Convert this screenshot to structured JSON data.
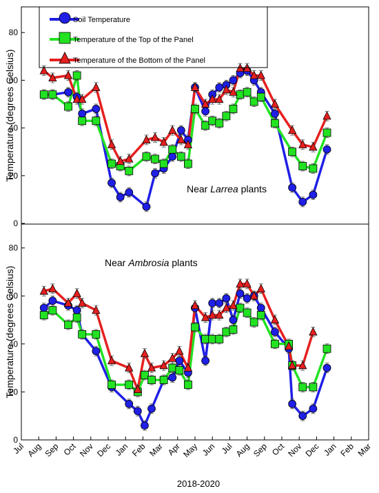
{
  "figure": {
    "xlabel": "2018-2020",
    "colors": {
      "soil": "#1f1fe6",
      "top": "#22e222",
      "bottom": "#e61f1f"
    }
  },
  "chart_data": [
    {
      "type": "line",
      "panel": "top",
      "annotation": {
        "before": "Near ",
        "italic": "Larrea",
        "after": " plants"
      },
      "ylabel": "Temperature (degrees Celsius)",
      "xlabel": "",
      "ylim": [
        0,
        90
      ],
      "yticks": [
        0,
        20,
        40,
        60,
        80
      ],
      "legend": {
        "placement": "top-left",
        "entries": [
          "Soil Temperature",
          "Temperature of the Top of the Panel",
          "Temperature of the Bottom of the Panel"
        ]
      },
      "series": [
        {
          "name": "Soil Temperature",
          "marker": "circle",
          "color": "#1f1fe6",
          "points": [
            [
              1.3,
              54
            ],
            [
              1.8,
              54
            ],
            [
              2.7,
              55
            ],
            [
              3.2,
              53
            ],
            [
              3.5,
              46
            ],
            [
              4.3,
              48
            ],
            [
              5.2,
              17
            ],
            [
              5.7,
              11
            ],
            [
              6.2,
              13
            ],
            [
              7.2,
              7
            ],
            [
              7.7,
              21
            ],
            [
              8.2,
              23
            ],
            [
              8.7,
              28
            ],
            [
              9.2,
              39
            ],
            [
              9.6,
              35
            ],
            [
              10.0,
              57
            ],
            [
              10.6,
              47
            ],
            [
              11.0,
              54
            ],
            [
              11.4,
              57
            ],
            [
              11.8,
              58
            ],
            [
              12.2,
              60
            ],
            [
              12.6,
              63
            ],
            [
              13.0,
              64
            ],
            [
              13.4,
              60
            ],
            [
              13.8,
              55
            ],
            [
              14.6,
              46
            ],
            [
              15.6,
              15
            ],
            [
              16.2,
              9
            ],
            [
              16.8,
              12
            ],
            [
              17.6,
              31
            ]
          ]
        },
        {
          "name": "Temperature of the Top of the Panel",
          "marker": "square",
          "color": "#22e222",
          "points": [
            [
              1.3,
              54
            ],
            [
              1.8,
              54
            ],
            [
              2.7,
              49
            ],
            [
              3.2,
              62
            ],
            [
              3.5,
              43
            ],
            [
              4.3,
              43
            ],
            [
              5.2,
              25
            ],
            [
              5.7,
              24
            ],
            [
              6.2,
              22
            ],
            [
              7.2,
              28
            ],
            [
              7.7,
              27
            ],
            [
              8.2,
              25
            ],
            [
              8.7,
              31
            ],
            [
              9.2,
              28
            ],
            [
              9.6,
              25
            ],
            [
              10.0,
              48
            ],
            [
              10.6,
              41
            ],
            [
              11.0,
              43
            ],
            [
              11.4,
              42
            ],
            [
              11.8,
              45
            ],
            [
              12.2,
              48
            ],
            [
              12.6,
              54
            ],
            [
              13.0,
              55
            ],
            [
              13.4,
              51
            ],
            [
              13.8,
              53
            ],
            [
              14.6,
              42
            ],
            [
              15.6,
              30
            ],
            [
              16.2,
              24
            ],
            [
              16.8,
              23
            ],
            [
              17.6,
              38
            ]
          ]
        },
        {
          "name": "Temperature of the Bottom of the Panel",
          "marker": "triangle",
          "color": "#e61f1f",
          "points": [
            [
              1.3,
              64
            ],
            [
              1.8,
              61
            ],
            [
              2.7,
              62
            ],
            [
              3.2,
              52
            ],
            [
              3.5,
              52
            ],
            [
              4.3,
              57
            ],
            [
              5.2,
              33
            ],
            [
              5.7,
              26
            ],
            [
              6.2,
              27
            ],
            [
              7.2,
              35
            ],
            [
              7.7,
              36
            ],
            [
              8.2,
              34
            ],
            [
              8.7,
              39
            ],
            [
              9.2,
              35
            ],
            [
              9.6,
              33
            ],
            [
              10.0,
              57
            ],
            [
              10.6,
              50
            ],
            [
              11.0,
              52
            ],
            [
              11.4,
              52
            ],
            [
              11.8,
              56
            ],
            [
              12.2,
              55
            ],
            [
              12.6,
              65
            ],
            [
              13.0,
              65
            ],
            [
              13.4,
              62
            ],
            [
              13.8,
              62
            ],
            [
              14.6,
              50
            ],
            [
              15.6,
              39
            ],
            [
              16.2,
              33
            ],
            [
              16.8,
              32
            ],
            [
              17.6,
              45
            ]
          ]
        }
      ]
    },
    {
      "type": "line",
      "panel": "bottom",
      "annotation": {
        "before": "Near ",
        "italic": "Ambrosia",
        "after": " plants"
      },
      "ylabel": "Temperature (degrees Celsius)",
      "xlabel": "",
      "ylim": [
        0,
        90
      ],
      "yticks": [
        0,
        20,
        40,
        60,
        80
      ],
      "xticks": [
        "Jul",
        "Aug",
        "Sep",
        "Oct",
        "Nov",
        "Dec",
        "Jan",
        "Feb",
        "Mar",
        "Apr",
        "May",
        "Jun",
        "Jul",
        "Aug",
        "Sep",
        "Oct",
        "Nov",
        "Dec",
        "Jan",
        "Feb",
        "Mar"
      ],
      "series": [
        {
          "name": "Soil Temperature",
          "marker": "circle",
          "color": "#1f1fe6",
          "points": [
            [
              1.3,
              55
            ],
            [
              1.8,
              58
            ],
            [
              2.7,
              56
            ],
            [
              3.2,
              54
            ],
            [
              3.5,
              44
            ],
            [
              4.3,
              37
            ],
            [
              5.2,
              22
            ],
            [
              6.2,
              15
            ],
            [
              6.7,
              12
            ],
            [
              7.1,
              6
            ],
            [
              7.5,
              13
            ],
            [
              8.2,
              25
            ],
            [
              8.7,
              26
            ],
            [
              9.1,
              33
            ],
            [
              9.6,
              28
            ],
            [
              10.0,
              55
            ],
            [
              10.6,
              33
            ],
            [
              11.0,
              57
            ],
            [
              11.4,
              57
            ],
            [
              11.8,
              59
            ],
            [
              12.2,
              50
            ],
            [
              12.6,
              61
            ],
            [
              13.0,
              59
            ],
            [
              13.4,
              60
            ],
            [
              13.8,
              55
            ],
            [
              14.6,
              45
            ],
            [
              15.4,
              38
            ],
            [
              15.6,
              15
            ],
            [
              16.2,
              10
            ],
            [
              16.8,
              13
            ],
            [
              17.6,
              30
            ]
          ]
        },
        {
          "name": "Temperature of the Top of the Panel",
          "marker": "square",
          "color": "#22e222",
          "points": [
            [
              1.3,
              52
            ],
            [
              1.8,
              54
            ],
            [
              2.7,
              48
            ],
            [
              3.2,
              51
            ],
            [
              3.5,
              44
            ],
            [
              4.3,
              44
            ],
            [
              5.2,
              23
            ],
            [
              6.2,
              23
            ],
            [
              6.7,
              20
            ],
            [
              7.1,
              27
            ],
            [
              7.5,
              25
            ],
            [
              8.2,
              25
            ],
            [
              8.7,
              30
            ],
            [
              9.1,
              29
            ],
            [
              9.6,
              23
            ],
            [
              10.0,
              47
            ],
            [
              10.6,
              42
            ],
            [
              11.0,
              42
            ],
            [
              11.4,
              42
            ],
            [
              11.8,
              45
            ],
            [
              12.2,
              46
            ],
            [
              12.6,
              55
            ],
            [
              13.0,
              53
            ],
            [
              13.4,
              49
            ],
            [
              13.8,
              52
            ],
            [
              14.6,
              40
            ],
            [
              15.4,
              40
            ],
            [
              15.6,
              31
            ],
            [
              16.2,
              22
            ],
            [
              16.8,
              22
            ],
            [
              17.6,
              38
            ]
          ]
        },
        {
          "name": "Temperature of the Bottom of the Panel",
          "marker": "triangle",
          "color": "#e61f1f",
          "points": [
            [
              1.3,
              62
            ],
            [
              1.8,
              63
            ],
            [
              2.7,
              57
            ],
            [
              3.2,
              61
            ],
            [
              3.5,
              57
            ],
            [
              4.3,
              54
            ],
            [
              5.2,
              33
            ],
            [
              6.2,
              30
            ],
            [
              6.7,
              21
            ],
            [
              7.1,
              36
            ],
            [
              7.5,
              30
            ],
            [
              8.2,
              31
            ],
            [
              8.7,
              34
            ],
            [
              9.1,
              37
            ],
            [
              9.6,
              30
            ],
            [
              10.0,
              56
            ],
            [
              10.6,
              51
            ],
            [
              11.0,
              52
            ],
            [
              11.4,
              52
            ],
            [
              11.8,
              55
            ],
            [
              12.2,
              56
            ],
            [
              12.6,
              65
            ],
            [
              13.0,
              65
            ],
            [
              13.4,
              60
            ],
            [
              13.8,
              63
            ],
            [
              14.6,
              50
            ],
            [
              15.4,
              39
            ],
            [
              15.6,
              31
            ],
            [
              16.2,
              31
            ],
            [
              16.8,
              45
            ]
          ]
        }
      ]
    }
  ]
}
